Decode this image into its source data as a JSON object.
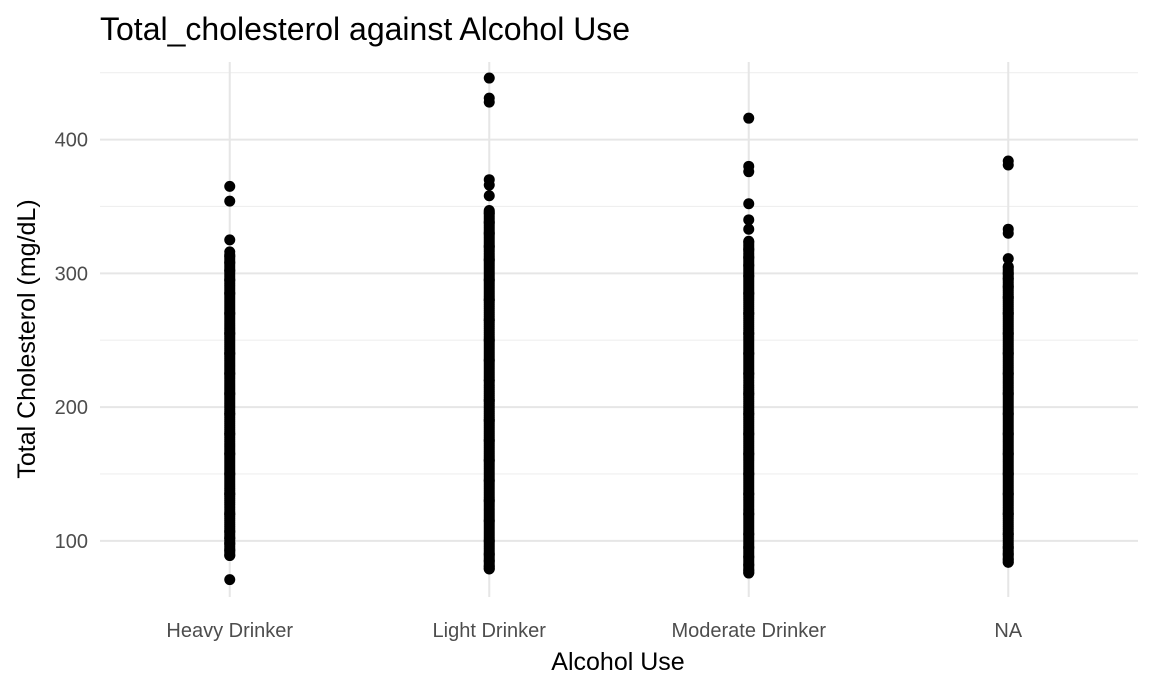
{
  "chart_data": {
    "type": "scatter",
    "title": "Total_cholesterol against Alcohol Use",
    "xlabel": "Alcohol Use",
    "ylabel": "Total Cholesterol (mg/dL)",
    "categories": [
      "Heavy Drinker",
      "Light Drinker",
      "Moderate Drinker",
      "NA"
    ],
    "yticks": [
      100,
      200,
      300,
      400
    ],
    "ylim": [
      58,
      458
    ],
    "grid": true,
    "legend": "none",
    "point_color": "#000000",
    "series": [
      {
        "category": "Heavy Drinker",
        "range": [
          89,
          315
        ],
        "points": [
          71,
          89,
          93,
          98,
          102,
          107,
          120,
          135,
          150,
          165,
          180,
          195,
          210,
          225,
          240,
          255,
          270,
          285,
          295,
          302,
          308,
          313,
          316,
          325,
          354,
          365
        ]
      },
      {
        "category": "Light Drinker",
        "range": [
          79,
          347
        ],
        "points": [
          79,
          81,
          85,
          90,
          100,
          115,
          130,
          145,
          160,
          175,
          190,
          205,
          220,
          235,
          250,
          265,
          280,
          295,
          310,
          320,
          330,
          338,
          345,
          347,
          358,
          366,
          370,
          428,
          431,
          446
        ]
      },
      {
        "category": "Moderate Drinker",
        "range": [
          76,
          324
        ],
        "points": [
          76,
          78,
          82,
          88,
          95,
          105,
          120,
          135,
          150,
          165,
          180,
          195,
          210,
          225,
          240,
          255,
          270,
          285,
          298,
          306,
          312,
          318,
          324,
          333,
          340,
          352,
          376,
          380,
          416
        ]
      },
      {
        "category": "NA",
        "range": [
          84,
          305
        ],
        "points": [
          84,
          86,
          90,
          95,
          105,
          120,
          135,
          150,
          165,
          180,
          195,
          210,
          225,
          240,
          255,
          270,
          282,
          290,
          296,
          300,
          305,
          311,
          330,
          333,
          381,
          384
        ]
      }
    ]
  }
}
